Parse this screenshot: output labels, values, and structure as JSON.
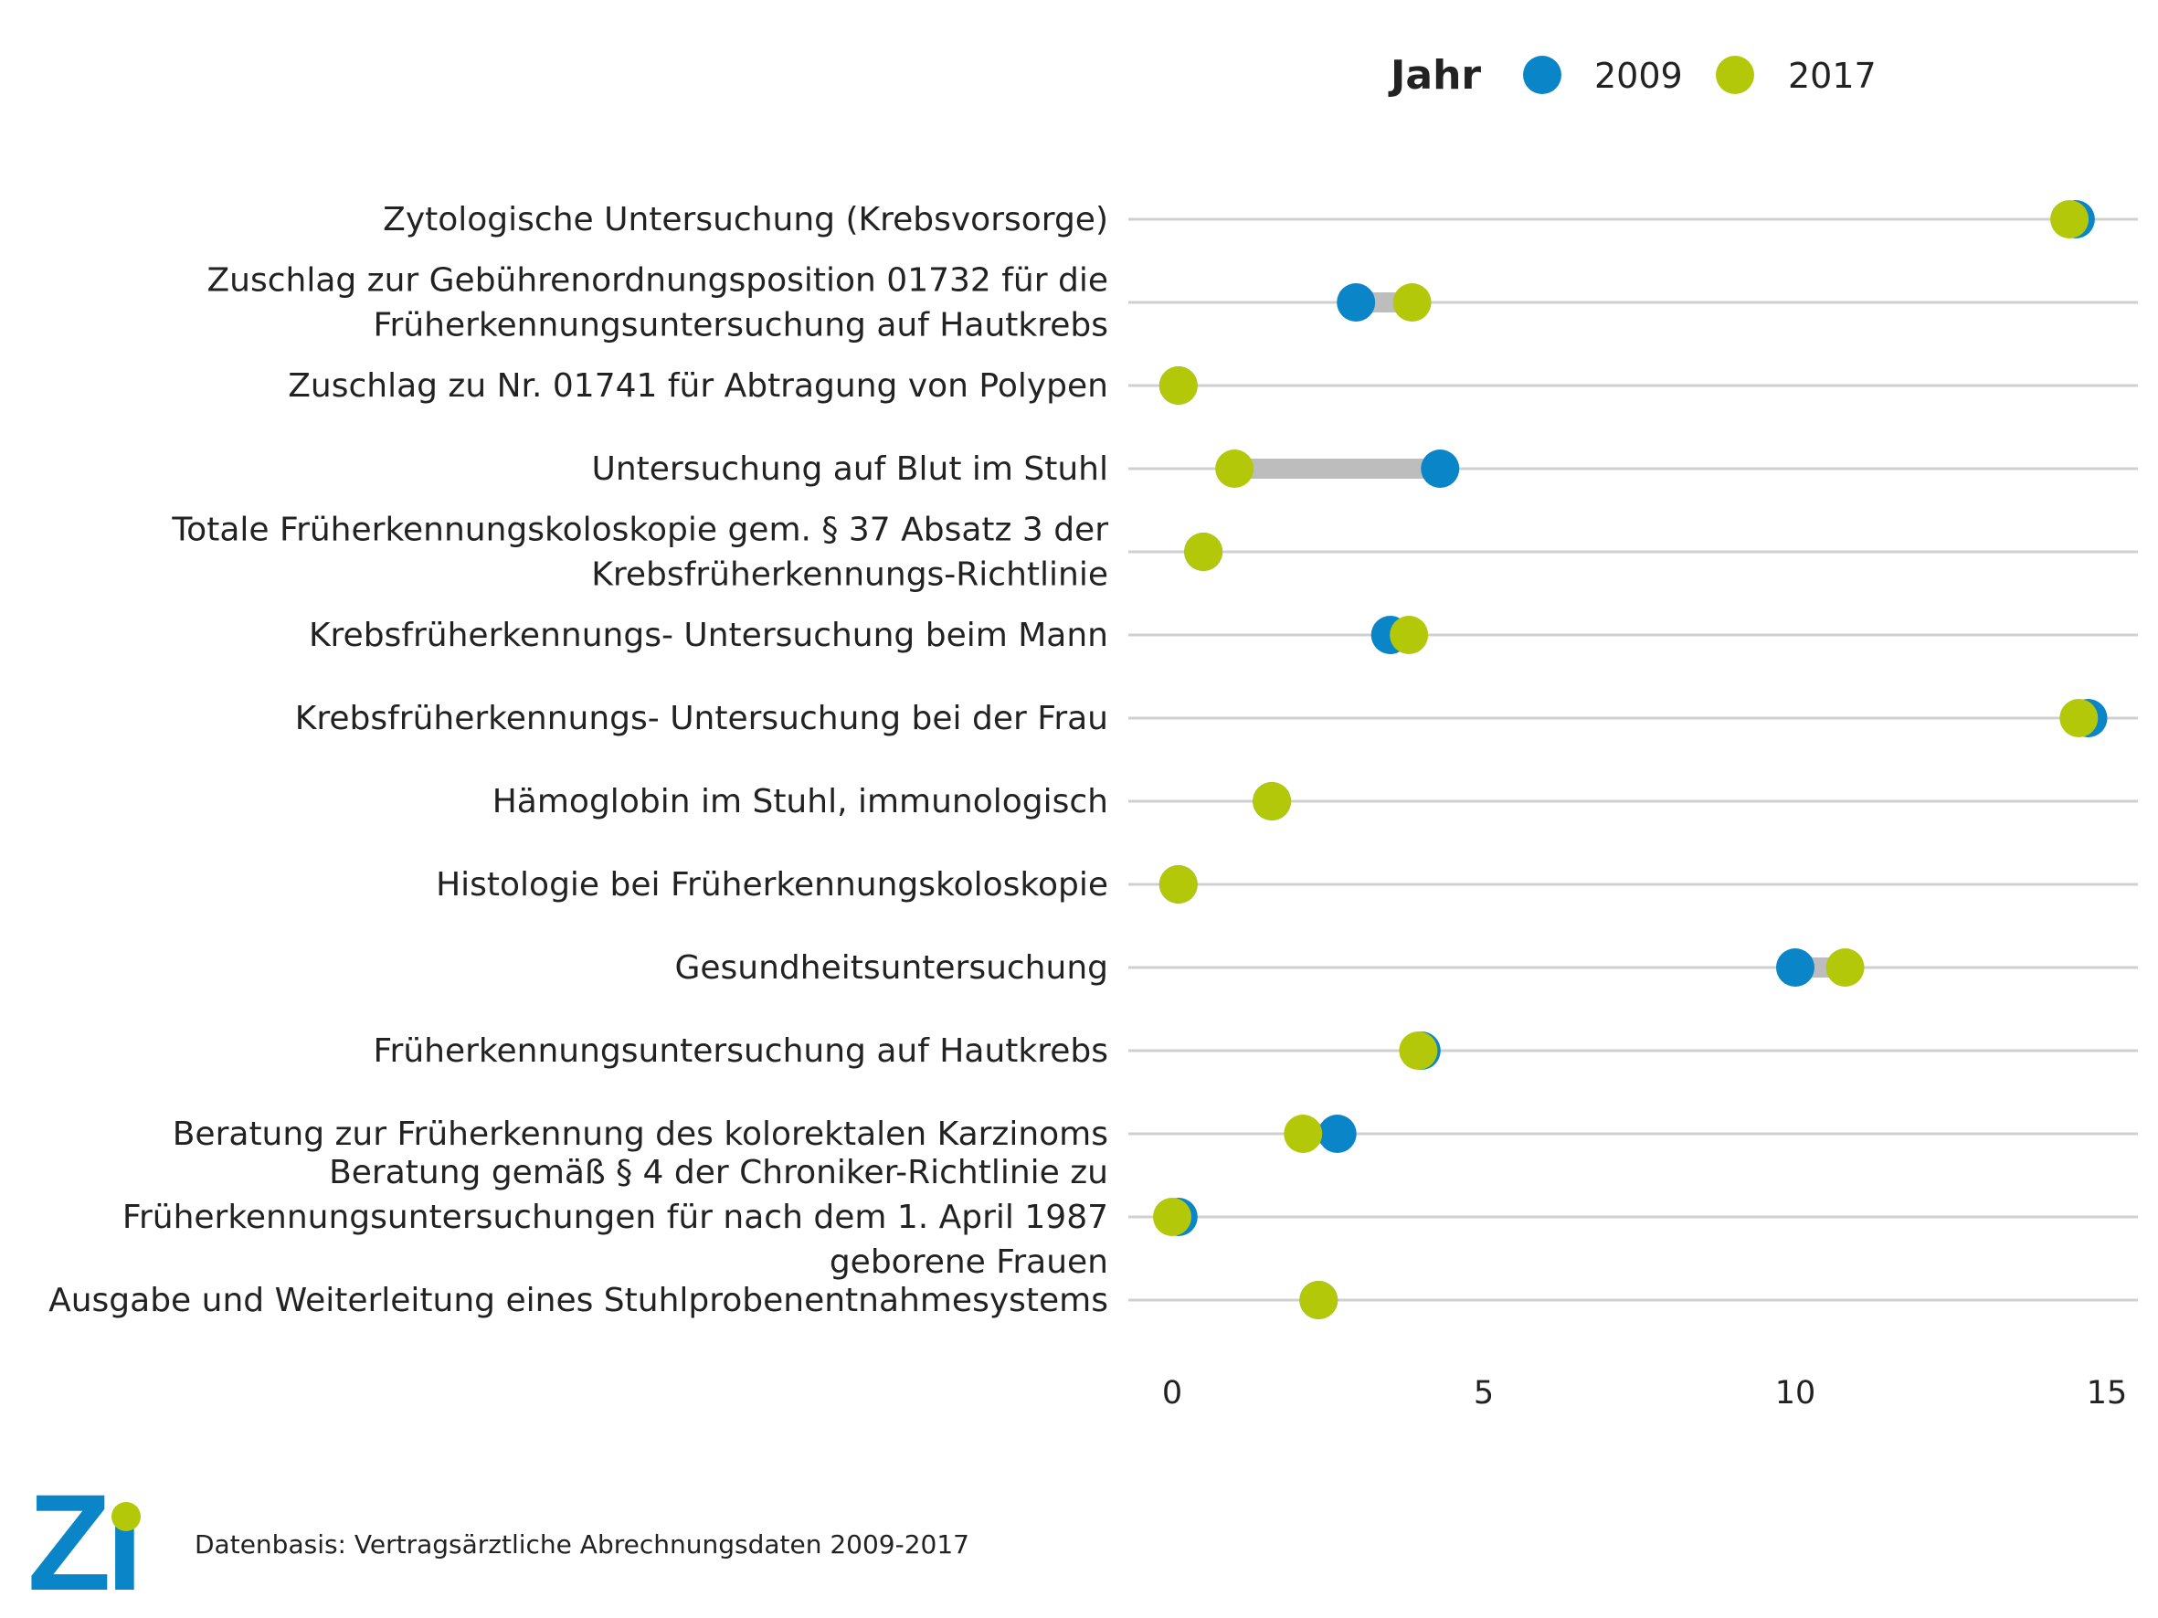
{
  "chart_data": {
    "type": "dumbbell",
    "legend": {
      "title": "Jahr",
      "placement": "top-right"
    },
    "series": [
      {
        "name": "2009",
        "color": "#0a86c8"
      },
      {
        "name": "2017",
        "color": "#b4c80a"
      }
    ],
    "xlim": [
      0,
      15
    ],
    "xticks": [
      0,
      5,
      10,
      15
    ],
    "connector_color": "#bdbdbd",
    "gridline_color": "#d0d0d0",
    "categories": [
      {
        "label": [
          "Zytologische Untersuchung (Krebsvorsorge)"
        ],
        "v2009": 14.5,
        "v2017": 14.4
      },
      {
        "label": [
          "Zuschlag zur Gebührenordnungsposition 01732 für die",
          "Früherkennungsuntersuchung auf Hautkrebs"
        ],
        "v2009": 2.95,
        "v2017": 3.85
      },
      {
        "label": [
          "Zuschlag zu Nr. 01741 für Abtragung von Polypen"
        ],
        "v2009": 0.1,
        "v2017": 0.1
      },
      {
        "label": [
          "Untersuchung auf Blut im Stuhl"
        ],
        "v2009": 4.3,
        "v2017": 1.0
      },
      {
        "label": [
          "Totale Früherkennungskoloskopie gem. § 37 Absatz 3 der",
          "Krebsfrüherkennungs-Richtlinie"
        ],
        "v2009": 0.5,
        "v2017": 0.5
      },
      {
        "label": [
          "Krebsfrüherkennungs- Untersuchung beim Mann"
        ],
        "v2009": 3.5,
        "v2017": 3.8
      },
      {
        "label": [
          "Krebsfrüherkennungs- Untersuchung bei der Frau"
        ],
        "v2009": 14.7,
        "v2017": 14.55
      },
      {
        "label": [
          "Hämoglobin im Stuhl, immunologisch"
        ],
        "v2009": 1.6,
        "v2017": 1.6
      },
      {
        "label": [
          "Histologie bei Früherkennungskoloskopie"
        ],
        "v2009": 0.1,
        "v2017": 0.1
      },
      {
        "label": [
          "Gesundheitsuntersuchung"
        ],
        "v2009": 10.0,
        "v2017": 10.8
      },
      {
        "label": [
          "Früherkennungsuntersuchung auf Hautkrebs"
        ],
        "v2009": 4.0,
        "v2017": 3.95
      },
      {
        "label": [
          "Beratung zur Früherkennung des kolorektalen Karzinoms"
        ],
        "v2009": 2.65,
        "v2017": 2.1
      },
      {
        "label": [
          "Beratung gemäß § 4 der Chroniker-Richtlinie zu",
          "Früherkennungsuntersuchungen für nach dem 1. April 1987",
          "geborene Frauen"
        ],
        "v2009": 0.1,
        "v2017": 0.0
      },
      {
        "label": [
          "Ausgabe und Weiterleitung eines Stuhlprobenentnahmesystems"
        ],
        "v2009": 2.35,
        "v2017": 2.35
      }
    ]
  },
  "footer": {
    "logo_text": "Zi",
    "source": "Datenbasis: Vertragsärztliche Abrechnungsdaten 2009-2017"
  }
}
